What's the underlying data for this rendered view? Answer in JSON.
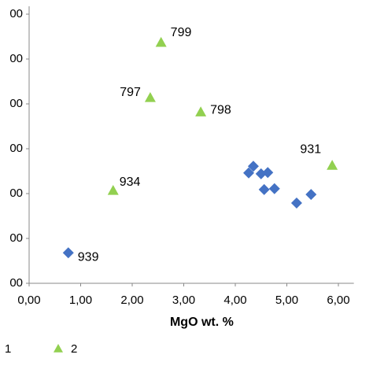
{
  "chart_data": {
    "type": "scatter",
    "x_label": "MgO wt. %",
    "xlim": [
      0,
      6.3
    ],
    "xticks": [
      {
        "value": 0,
        "label": "0,00"
      },
      {
        "value": 1,
        "label": "1,00"
      },
      {
        "value": 2,
        "label": "2,00"
      },
      {
        "value": 3,
        "label": "3,00"
      },
      {
        "value": 4,
        "label": "4,00"
      },
      {
        "value": 5,
        "label": "5,00"
      },
      {
        "value": 6,
        "label": "6,00"
      }
    ],
    "ylim": [
      0,
      6
    ],
    "yticks": [
      {
        "value": 0,
        "label": "00"
      },
      {
        "value": 1,
        "label": "00"
      },
      {
        "value": 2,
        "label": "00"
      },
      {
        "value": 3,
        "label": "00"
      },
      {
        "value": 4,
        "label": "00"
      },
      {
        "value": 5,
        "label": "00"
      },
      {
        "value": 6,
        "label": "00"
      }
    ],
    "series": [
      {
        "name": "1",
        "color": "#4472c4",
        "marker": "diamond",
        "x": [
          0.76,
          4.35,
          4.26,
          4.5,
          4.63,
          4.56,
          4.76,
          5.19,
          5.47
        ],
        "values": [
          0.68,
          2.61,
          2.46,
          2.44,
          2.47,
          2.09,
          2.11,
          1.79,
          1.98
        ],
        "point_labels": [
          "939",
          null,
          null,
          null,
          null,
          null,
          null,
          null,
          null
        ]
      },
      {
        "name": "2",
        "color": "#92d050",
        "marker": "triangle",
        "x": [
          2.56,
          2.35,
          3.33,
          5.88,
          1.63
        ],
        "values": [
          5.37,
          4.14,
          3.82,
          2.63,
          2.07
        ],
        "point_labels": [
          "799",
          "797",
          "798",
          "931",
          "934"
        ]
      }
    ]
  }
}
